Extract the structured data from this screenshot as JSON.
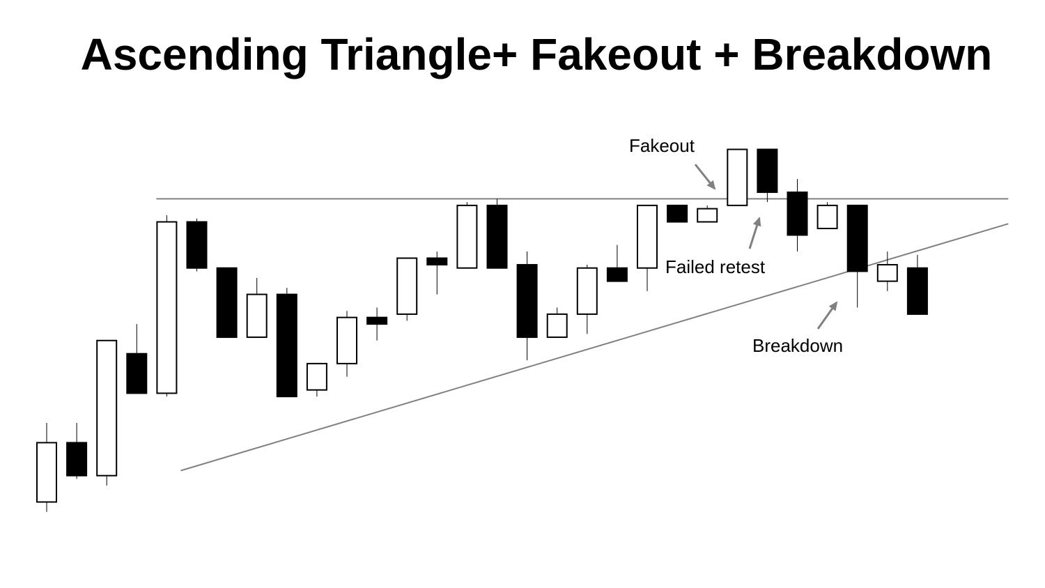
{
  "chart_data": {
    "type": "candlestick",
    "title": "Ascending Triangle+ Fakeout + Breakdown",
    "xlabel": "",
    "ylabel": "",
    "grid": false,
    "colors": {
      "bullish": "#ffffff",
      "bearish": "#000000",
      "outline": "#000000",
      "trendline": "#808080",
      "arrow": "#808080"
    },
    "ylim": [
      0,
      100
    ],
    "candles": [
      {
        "open": 2,
        "high": 26,
        "low": -1,
        "close": 20
      },
      {
        "open": 20,
        "high": 26,
        "low": 9,
        "close": 10
      },
      {
        "open": 10,
        "high": 51,
        "low": 7,
        "close": 51
      },
      {
        "open": 47,
        "high": 56,
        "low": 35,
        "close": 35
      },
      {
        "open": 35,
        "high": 89,
        "low": 34,
        "close": 87
      },
      {
        "open": 87,
        "high": 88,
        "low": 72,
        "close": 73
      },
      {
        "open": 73,
        "high": 73,
        "low": 52,
        "close": 52
      },
      {
        "open": 52,
        "high": 70,
        "low": 52,
        "close": 65
      },
      {
        "open": 65,
        "high": 67,
        "low": 34,
        "close": 34
      },
      {
        "open": 36,
        "high": 44,
        "low": 34,
        "close": 44
      },
      {
        "open": 44,
        "high": 60,
        "low": 40,
        "close": 58
      },
      {
        "open": 58,
        "high": 61,
        "low": 51,
        "close": 56
      },
      {
        "open": 59,
        "high": 76,
        "low": 57,
        "close": 76
      },
      {
        "open": 76,
        "high": 78,
        "low": 65,
        "close": 74
      },
      {
        "open": 73,
        "high": 93,
        "low": 73,
        "close": 92
      },
      {
        "open": 92,
        "high": 94,
        "low": 73,
        "close": 73
      },
      {
        "open": 74,
        "high": 78,
        "low": 45,
        "close": 52
      },
      {
        "open": 52,
        "high": 61,
        "low": 52,
        "close": 59
      },
      {
        "open": 59,
        "high": 74,
        "low": 53,
        "close": 73
      },
      {
        "open": 73,
        "high": 80,
        "low": 69,
        "close": 69
      },
      {
        "open": 73,
        "high": 92,
        "low": 66,
        "close": 92
      },
      {
        "open": 92,
        "high": 92,
        "low": 87,
        "close": 87
      },
      {
        "open": 87,
        "high": 92,
        "low": 87,
        "close": 91
      },
      {
        "open": 92,
        "high": 109,
        "low": 92,
        "close": 109
      },
      {
        "open": 109,
        "high": 109,
        "low": 93,
        "close": 96
      },
      {
        "open": 96,
        "high": 100,
        "low": 78,
        "close": 83
      },
      {
        "open": 85,
        "high": 93,
        "low": 85,
        "close": 92
      },
      {
        "open": 92,
        "high": 92,
        "low": 61,
        "close": 72
      },
      {
        "open": 69,
        "high": 78,
        "low": 66,
        "close": 74
      },
      {
        "open": 73,
        "high": 77,
        "low": 59,
        "close": 59
      }
    ],
    "resistance_line": {
      "value": 94,
      "from_index": 4,
      "to_index": 33
    },
    "support_line": {
      "from_index": 5,
      "from_value": 13,
      "to_index": 33,
      "to_value": 86
    },
    "annotations": [
      {
        "text": "Fakeout",
        "target_index": 23
      },
      {
        "text": "Failed retest",
        "target_index": 24
      },
      {
        "text": "Breakdown",
        "target_index": 27
      }
    ]
  }
}
